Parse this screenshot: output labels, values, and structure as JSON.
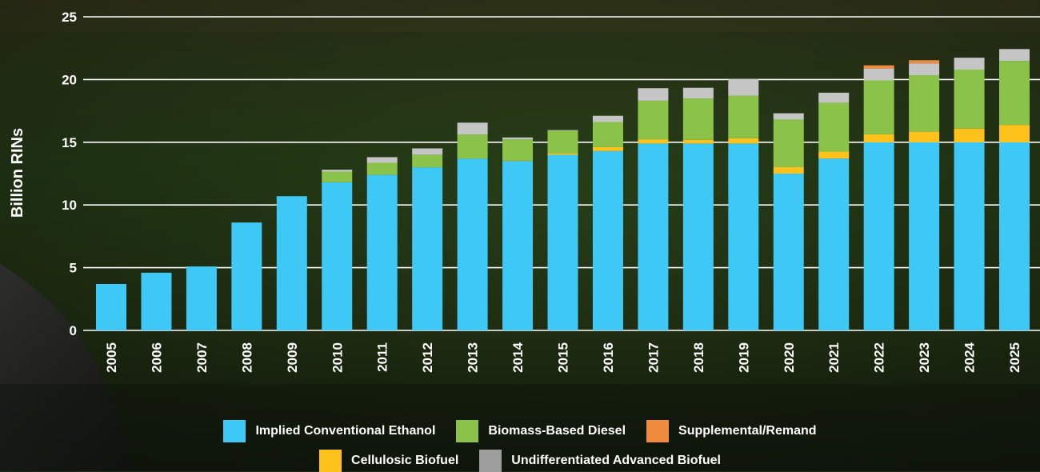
{
  "chart_data": {
    "type": "bar",
    "stacked": true,
    "ylabel": "Billion RINs",
    "xlabel": "",
    "title": "",
    "ylim": [
      0,
      25
    ],
    "yticks": [
      0,
      5,
      10,
      15,
      20,
      25
    ],
    "grid": true,
    "legend_position": "bottom",
    "categories": [
      "2005",
      "2006",
      "2007",
      "2008",
      "2009",
      "2010",
      "2011",
      "2012",
      "2013",
      "2014",
      "2015",
      "2016",
      "2017",
      "2018",
      "2019",
      "2020",
      "2021",
      "2022",
      "2023",
      "2024",
      "2025"
    ],
    "series": [
      {
        "name": "Implied Conventional Ethanol",
        "color": "#3ec8f5",
        "values": [
          3.7,
          4.6,
          5.1,
          8.6,
          10.7,
          11.8,
          12.4,
          13.0,
          13.7,
          13.5,
          14.0,
          14.3,
          14.9,
          14.9,
          14.9,
          12.5,
          13.7,
          15.0,
          15.0,
          15.0,
          15.0
        ]
      },
      {
        "name": "Cellulosic Biofuel",
        "color": "#ffc21a",
        "values": [
          0,
          0,
          0,
          0,
          0,
          0.01,
          0.01,
          0.01,
          0.01,
          0.03,
          0.12,
          0.31,
          0.31,
          0.29,
          0.42,
          0.51,
          0.55,
          0.63,
          0.84,
          1.09,
          1.38
        ]
      },
      {
        "name": "Biomass-Based Diesel",
        "color": "#8bc34a",
        "values": [
          0,
          0,
          0,
          0,
          0,
          0.85,
          0.95,
          1.0,
          1.9,
          1.7,
          1.8,
          2.0,
          3.1,
          3.3,
          3.4,
          3.8,
          3.9,
          4.3,
          4.5,
          4.7,
          5.1
        ]
      },
      {
        "name": "Undifferentiated Advanced Biofuel",
        "color": "#c5c5c5",
        "values": [
          0,
          0,
          0,
          0,
          0,
          0.15,
          0.45,
          0.5,
          0.95,
          0.15,
          0.05,
          0.5,
          1.0,
          0.85,
          1.3,
          0.5,
          0.8,
          0.95,
          0.95,
          0.95,
          0.95
        ]
      },
      {
        "name": "Supplemental/Remand",
        "color": "#f08a3c",
        "values": [
          0,
          0,
          0,
          0,
          0,
          0,
          0,
          0,
          0,
          0,
          0,
          0,
          0,
          0,
          0,
          0,
          0,
          0.25,
          0.25,
          0,
          0
        ]
      }
    ]
  },
  "legend": {
    "row1": [
      "Implied Conventional Ethanol",
      "Biomass-Based Diesel",
      "Supplemental/Remand"
    ],
    "row2": [
      "Cellulosic Biofuel",
      "Undifferentiated Advanced Biofuel"
    ]
  }
}
